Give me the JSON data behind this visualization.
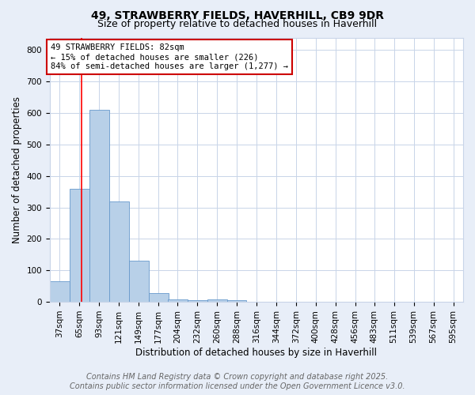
{
  "title_line1": "49, STRAWBERRY FIELDS, HAVERHILL, CB9 9DR",
  "title_line2": "Size of property relative to detached houses in Haverhill",
  "xlabel": "Distribution of detached houses by size in Haverhill",
  "ylabel": "Number of detached properties",
  "bin_labels": [
    "37sqm",
    "65sqm",
    "93sqm",
    "121sqm",
    "149sqm",
    "177sqm",
    "204sqm",
    "232sqm",
    "260sqm",
    "288sqm",
    "316sqm",
    "344sqm",
    "372sqm",
    "400sqm",
    "428sqm",
    "456sqm",
    "483sqm",
    "511sqm",
    "539sqm",
    "567sqm",
    "595sqm"
  ],
  "bin_edges": [
    37,
    65,
    93,
    121,
    149,
    177,
    204,
    232,
    260,
    288,
    316,
    344,
    372,
    400,
    428,
    456,
    483,
    511,
    539,
    567,
    595
  ],
  "bar_heights": [
    65,
    360,
    610,
    320,
    130,
    28,
    8,
    5,
    8,
    5,
    0,
    0,
    0,
    0,
    0,
    0,
    0,
    0,
    0,
    0
  ],
  "bar_color": "#b8d0e8",
  "bar_edge_color": "#6699cc",
  "red_line_x": 82,
  "ylim": [
    0,
    840
  ],
  "yticks": [
    0,
    100,
    200,
    300,
    400,
    500,
    600,
    700,
    800
  ],
  "annotation_text": "49 STRAWBERRY FIELDS: 82sqm\n← 15% of detached houses are smaller (226)\n84% of semi-detached houses are larger (1,277) →",
  "annotation_box_color": "#ffffff",
  "annotation_box_edge": "#cc0000",
  "footer_line1": "Contains HM Land Registry data © Crown copyright and database right 2025.",
  "footer_line2": "Contains public sector information licensed under the Open Government Licence v3.0.",
  "bg_color": "#e8eef8",
  "plot_bg_color": "#ffffff",
  "grid_color": "#c8d4e8",
  "title_fontsize": 10,
  "subtitle_fontsize": 9,
  "axis_label_fontsize": 8.5,
  "tick_fontsize": 7.5,
  "footer_fontsize": 7,
  "annotation_fontsize": 7.5
}
